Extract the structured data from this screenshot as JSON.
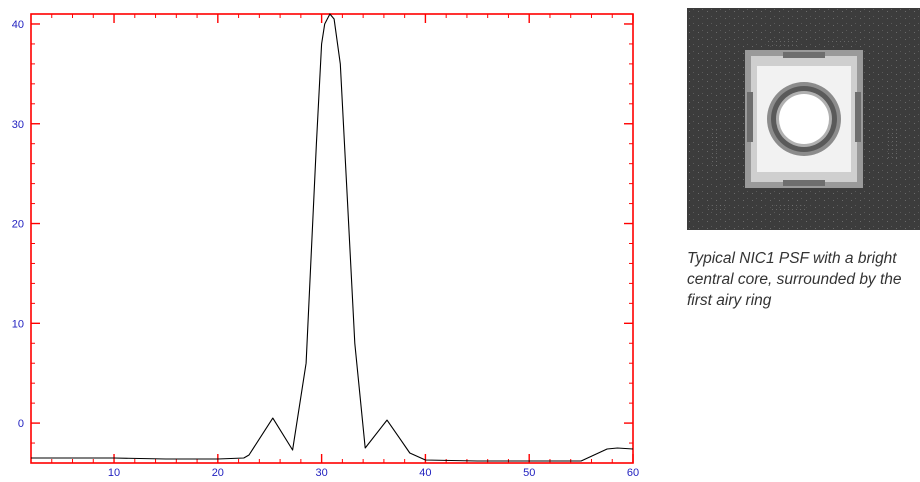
{
  "chart_data": {
    "type": "line",
    "xlim": [
      2,
      60
    ],
    "ylim": [
      -4,
      41
    ],
    "x_ticks": [
      10,
      20,
      30,
      40,
      50,
      60
    ],
    "y_ticks": [
      0,
      10,
      20,
      30,
      40
    ],
    "grid": false,
    "colors": {
      "axes": "#ff0000",
      "tick_labels": "#1f1fbf",
      "line": "#000000"
    },
    "series": [
      {
        "x": [
          2,
          10,
          15,
          20,
          22.5,
          23,
          25.3,
          27.2,
          28.5,
          29.5,
          30,
          30.3,
          30.8,
          31.2,
          31.8,
          32.5,
          33.2,
          34.2,
          36.3,
          37.5,
          38.5,
          40,
          45,
          50,
          55,
          57.5,
          58.5,
          60
        ],
        "y": [
          -3.5,
          -3.5,
          -3.6,
          -3.6,
          -3.5,
          -3.2,
          0.5,
          -2.7,
          6,
          28,
          38,
          40,
          41,
          40.5,
          36,
          22,
          8,
          -2.5,
          0.3,
          -1.5,
          -3,
          -3.7,
          -3.8,
          -3.8,
          -3.8,
          -2.6,
          -2.5,
          -2.6
        ]
      }
    ]
  },
  "psf_image": {
    "icon": "psf-ring-image"
  },
  "caption": "Typical NIC1 PSF with a bright central core, surrounded by the first airy ring"
}
